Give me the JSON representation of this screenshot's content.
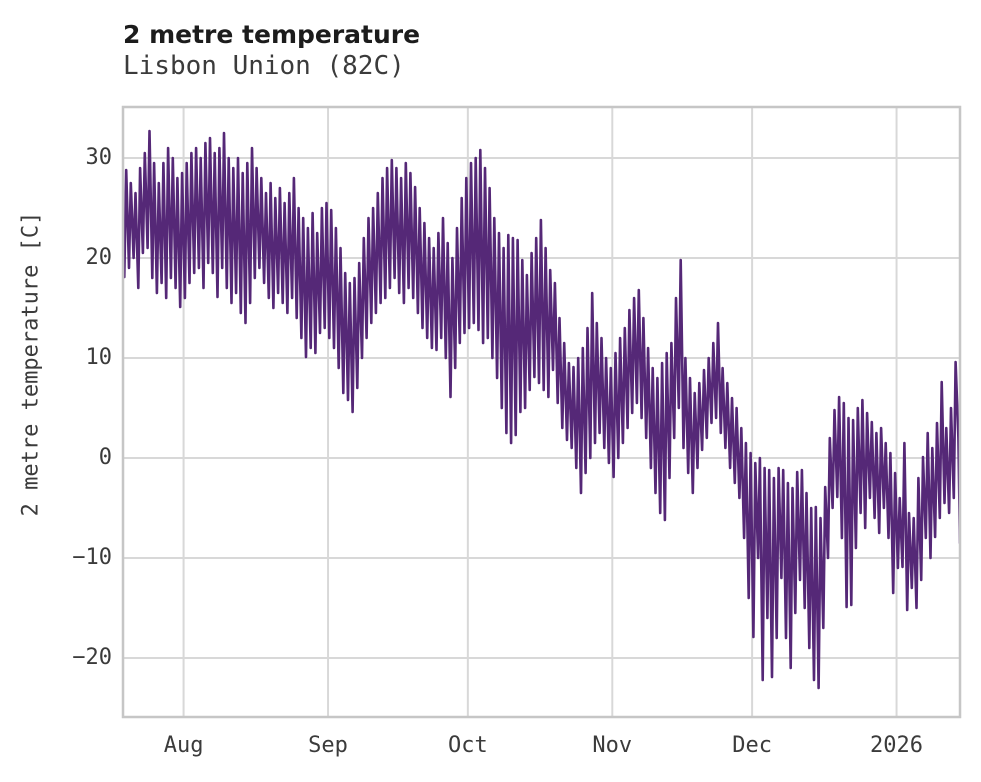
{
  "colors": {
    "line": "#552877",
    "grid": "#d8d8d8",
    "frame": "#c6c6c6",
    "title_text": "#1c1c1c",
    "label_text": "#3b3b3b",
    "background": "#ffffff"
  },
  "chart_data": {
    "type": "line",
    "title": "2 metre temperature",
    "subtitle": "Lisbon Union (82C)",
    "ylabel": "2 metre temperature [C]",
    "xlabel": "",
    "grid": true,
    "legend": "none",
    "ylim": [
      -25.9,
      35.1
    ],
    "y_ticks": [
      30,
      20,
      10,
      0,
      -10,
      -20
    ],
    "x_tick_labels": [
      "Aug",
      "Sep",
      "Oct",
      "Nov",
      "Dec",
      "2026"
    ],
    "x_tick_day_index": [
      13,
      44,
      74,
      105,
      135,
      166
    ],
    "x_span_days": 180,
    "x_start": "mid-July",
    "x_end": "mid-January 2026",
    "series": [
      {
        "name": "2 metre temperature",
        "color": "#552877",
        "encoding": "daily min/max envelope of the plotted hourly-resolution trace, day 0 = left edge of plot",
        "daily_min": [
          18.1,
          19,
          20,
          17,
          20.5,
          21,
          18,
          16.5,
          17.5,
          16,
          18,
          17,
          15.1,
          16,
          17.5,
          18.5,
          19,
          17,
          19.5,
          18.5,
          16.1,
          19,
          17,
          15.5,
          16.5,
          14.5,
          13.5,
          15.5,
          18,
          19,
          17.5,
          16,
          15,
          16.5,
          15.5,
          14.5,
          16,
          14,
          12,
          10.1,
          11,
          10.5,
          12.5,
          13,
          12,
          11,
          9,
          6.5,
          5.8,
          4.6,
          7,
          10,
          12,
          13.5,
          14.5,
          15.5,
          16,
          17,
          18,
          16.5,
          15.5,
          17,
          16,
          14.5,
          13,
          12,
          11,
          10.8,
          12,
          10,
          6.1,
          9,
          11.5,
          12.5,
          13,
          13.5,
          12.8,
          11.5,
          12,
          10,
          8,
          5,
          2.5,
          1.5,
          2.3,
          4.6,
          5,
          6.8,
          8.1,
          7.5,
          6.8,
          6.1,
          8.8,
          5.5,
          3,
          1.8,
          1,
          -1,
          -3.5,
          -1.5,
          0,
          1.5,
          2.5,
          1,
          -0.5,
          -1.9,
          0,
          1.5,
          3,
          4.5,
          5.5,
          4,
          2,
          -1,
          -3.5,
          -5.5,
          -6.2,
          -2,
          2,
          5,
          1,
          -1.5,
          -3.5,
          -1,
          0.8,
          2,
          3.5,
          4,
          2.5,
          1,
          -1,
          -2.5,
          -4,
          -8,
          -14,
          -17.9,
          -10,
          -22.2,
          -16,
          -21.9,
          -18,
          -12,
          -18,
          -21,
          -15.5,
          -12.2,
          -15,
          -19,
          -22.2,
          -23,
          -17,
          -10,
          -5,
          -3.9,
          -8,
          -14.9,
          -14.7,
          -9,
          -5.5,
          -7,
          -4,
          -6,
          -7.5,
          -5,
          -8,
          -13.5,
          -11,
          -10.9,
          -15.2,
          -13,
          -15,
          -12.2,
          -8,
          -10,
          -7.9,
          -6,
          -4.5,
          -5.5,
          -4,
          -8.5
        ],
        "daily_max": [
          28.8,
          27.5,
          26.5,
          29,
          30.5,
          32.7,
          29.5,
          27.5,
          29.5,
          31,
          30,
          28,
          28.5,
          29.5,
          30.5,
          31,
          30,
          31.5,
          32,
          30.5,
          31,
          32.5,
          30,
          29,
          30,
          28.5,
          29.5,
          31,
          29,
          28,
          26.5,
          27.5,
          26,
          27,
          25.5,
          26.5,
          28,
          25,
          24,
          23,
          24.5,
          22.5,
          25,
          25.5,
          24.8,
          23,
          21,
          18.5,
          17.5,
          18,
          19.5,
          22,
          24,
          25,
          26.5,
          28,
          29,
          29.8,
          29,
          28,
          29.5,
          28.5,
          27.1,
          25,
          23.5,
          22,
          21,
          22.5,
          24,
          21.5,
          20,
          23,
          26,
          28,
          29.5,
          30,
          30.8,
          29,
          27,
          24,
          22.5,
          21,
          22.3,
          22,
          21.8,
          19.8,
          18.3,
          20.5,
          22,
          23.8,
          21,
          18.8,
          17.5,
          14,
          11.5,
          9.5,
          9.1,
          10,
          11,
          13,
          16.5,
          13.5,
          12,
          10,
          9,
          10.5,
          12,
          13,
          14.8,
          16,
          16.8,
          14,
          11,
          9,
          8,
          9.5,
          10.5,
          11.5,
          16,
          19.8,
          10,
          8,
          6.5,
          7.5,
          8.8,
          10,
          11.5,
          13.5,
          9,
          7.5,
          6,
          5,
          3,
          1.5,
          0.5,
          -0.5,
          0,
          -1,
          -1.2,
          -2,
          -1,
          -1.2,
          -2.5,
          -3,
          -1.4,
          -1.2,
          -3.5,
          -5,
          -4.9,
          -6,
          -2.9,
          2,
          4.8,
          6.1,
          5.5,
          4,
          3.8,
          5,
          5.8,
          4.5,
          3.6,
          2.5,
          3,
          1.5,
          0.5,
          -1.5,
          -4,
          1.5,
          -5.5,
          -6,
          -2,
          0.1,
          2.5,
          1,
          3.5,
          7.6,
          3,
          5,
          9.6,
          2
        ]
      }
    ]
  }
}
